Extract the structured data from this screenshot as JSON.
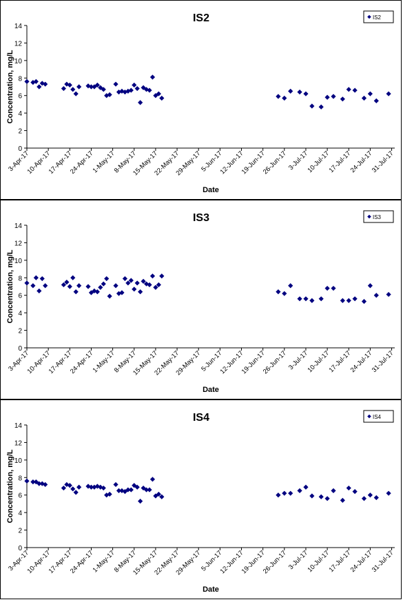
{
  "chart_data": [
    {
      "type": "scatter",
      "title": "IS2",
      "xlabel": "Date",
      "ylabel": "Concentration, mg/L",
      "ylim": [
        0,
        14
      ],
      "yticks": [
        0,
        2,
        4,
        6,
        8,
        10,
        12,
        14
      ],
      "xlim": [
        "2017-04-03",
        "2017-08-01"
      ],
      "xtick_labels": [
        "3-Apr-17",
        "10-Apr-17",
        "17-Apr-17",
        "24-Apr-17",
        "1-May-17",
        "8-May-17",
        "15-May-17",
        "22-May-17",
        "29-May-17",
        "5-Jun-17",
        "12-Jun-17",
        "19-Jun-17",
        "26-Jun-17",
        "3-Jul-17",
        "10-Jul-17",
        "17-Jul-17",
        "24-Jul-17",
        "31-Jul-17"
      ],
      "legend_position": "top-right",
      "grid": false,
      "marker_color": "#000080",
      "series": [
        {
          "name": "IS2",
          "points": [
            [
              "2017-04-03",
              7.6
            ],
            [
              "2017-04-05",
              7.5
            ],
            [
              "2017-04-06",
              7.6
            ],
            [
              "2017-04-07",
              7.0
            ],
            [
              "2017-04-08",
              7.4
            ],
            [
              "2017-04-09",
              7.3
            ],
            [
              "2017-04-15",
              6.8
            ],
            [
              "2017-04-16",
              7.3
            ],
            [
              "2017-04-17",
              7.2
            ],
            [
              "2017-04-18",
              6.7
            ],
            [
              "2017-04-19",
              6.2
            ],
            [
              "2017-04-20",
              7.0
            ],
            [
              "2017-04-23",
              7.1
            ],
            [
              "2017-04-24",
              7.0
            ],
            [
              "2017-04-25",
              7.0
            ],
            [
              "2017-04-26",
              7.2
            ],
            [
              "2017-04-27",
              6.9
            ],
            [
              "2017-04-28",
              6.7
            ],
            [
              "2017-04-29",
              6.0
            ],
            [
              "2017-04-30",
              6.1
            ],
            [
              "2017-05-02",
              7.3
            ],
            [
              "2017-05-03",
              6.4
            ],
            [
              "2017-05-04",
              6.5
            ],
            [
              "2017-05-05",
              6.4
            ],
            [
              "2017-05-06",
              6.5
            ],
            [
              "2017-05-07",
              6.6
            ],
            [
              "2017-05-08",
              7.2
            ],
            [
              "2017-05-09",
              6.8
            ],
            [
              "2017-05-10",
              5.2
            ],
            [
              "2017-05-11",
              6.9
            ],
            [
              "2017-05-12",
              6.7
            ],
            [
              "2017-05-13",
              6.6
            ],
            [
              "2017-05-14",
              8.1
            ],
            [
              "2017-05-15",
              6.0
            ],
            [
              "2017-05-16",
              6.2
            ],
            [
              "2017-05-17",
              5.7
            ],
            [
              "2017-06-24",
              5.9
            ],
            [
              "2017-06-26",
              5.7
            ],
            [
              "2017-06-28",
              6.5
            ],
            [
              "2017-07-01",
              6.4
            ],
            [
              "2017-07-03",
              6.2
            ],
            [
              "2017-07-05",
              4.8
            ],
            [
              "2017-07-08",
              4.7
            ],
            [
              "2017-07-10",
              5.8
            ],
            [
              "2017-07-12",
              5.9
            ],
            [
              "2017-07-15",
              5.6
            ],
            [
              "2017-07-17",
              6.7
            ],
            [
              "2017-07-19",
              6.6
            ],
            [
              "2017-07-22",
              5.7
            ],
            [
              "2017-07-24",
              6.2
            ],
            [
              "2017-07-26",
              5.4
            ],
            [
              "2017-07-30",
              6.2
            ]
          ]
        }
      ]
    },
    {
      "type": "scatter",
      "title": "IS3",
      "xlabel": "Date",
      "ylabel": "Concentration, mg/L",
      "ylim": [
        0,
        14
      ],
      "yticks": [
        0,
        2,
        4,
        6,
        8,
        10,
        12,
        14
      ],
      "xlim": [
        "2017-04-03",
        "2017-08-01"
      ],
      "xtick_labels": [
        "3-Apr-17",
        "10-Apr-17",
        "17-Apr-17",
        "24-Apr-17",
        "1-May-17",
        "8-May-17",
        "15-May-17",
        "22-May-17",
        "29-May-17",
        "5-Jun-17",
        "12-Jun-17",
        "19-Jun-17",
        "26-Jun-17",
        "3-Jul-17",
        "10-Jul-17",
        "17-Jul-17",
        "24-Jul-17",
        "31-Jul-17"
      ],
      "legend_position": "top-right",
      "grid": false,
      "marker_color": "#000080",
      "series": [
        {
          "name": "IS3",
          "points": [
            [
              "2017-04-03",
              7.4
            ],
            [
              "2017-04-05",
              7.1
            ],
            [
              "2017-04-06",
              8.0
            ],
            [
              "2017-04-07",
              6.5
            ],
            [
              "2017-04-08",
              7.9
            ],
            [
              "2017-04-09",
              7.1
            ],
            [
              "2017-04-15",
              7.2
            ],
            [
              "2017-04-16",
              7.5
            ],
            [
              "2017-04-17",
              7.0
            ],
            [
              "2017-04-18",
              8.0
            ],
            [
              "2017-04-19",
              6.4
            ],
            [
              "2017-04-20",
              7.1
            ],
            [
              "2017-04-23",
              7.0
            ],
            [
              "2017-04-24",
              6.3
            ],
            [
              "2017-04-25",
              6.5
            ],
            [
              "2017-04-26",
              6.4
            ],
            [
              "2017-04-27",
              6.9
            ],
            [
              "2017-04-28",
              7.3
            ],
            [
              "2017-04-29",
              7.9
            ],
            [
              "2017-04-30",
              5.9
            ],
            [
              "2017-05-02",
              7.1
            ],
            [
              "2017-05-03",
              6.2
            ],
            [
              "2017-05-04",
              6.3
            ],
            [
              "2017-05-05",
              7.9
            ],
            [
              "2017-05-06",
              7.4
            ],
            [
              "2017-05-07",
              7.7
            ],
            [
              "2017-05-08",
              6.7
            ],
            [
              "2017-05-09",
              7.4
            ],
            [
              "2017-05-10",
              6.4
            ],
            [
              "2017-05-11",
              7.6
            ],
            [
              "2017-05-12",
              7.3
            ],
            [
              "2017-05-13",
              7.2
            ],
            [
              "2017-05-14",
              8.2
            ],
            [
              "2017-05-15",
              6.9
            ],
            [
              "2017-05-16",
              7.2
            ],
            [
              "2017-05-17",
              8.2
            ],
            [
              "2017-06-24",
              6.4
            ],
            [
              "2017-06-26",
              6.2
            ],
            [
              "2017-06-28",
              7.1
            ],
            [
              "2017-07-01",
              5.6
            ],
            [
              "2017-07-03",
              5.6
            ],
            [
              "2017-07-05",
              5.4
            ],
            [
              "2017-07-08",
              5.6
            ],
            [
              "2017-07-10",
              6.8
            ],
            [
              "2017-07-12",
              6.8
            ],
            [
              "2017-07-15",
              5.4
            ],
            [
              "2017-07-17",
              5.4
            ],
            [
              "2017-07-19",
              5.6
            ],
            [
              "2017-07-22",
              5.3
            ],
            [
              "2017-07-24",
              7.1
            ],
            [
              "2017-07-26",
              6.0
            ],
            [
              "2017-07-30",
              6.1
            ]
          ]
        }
      ]
    },
    {
      "type": "scatter",
      "title": "IS4",
      "xlabel": "Date",
      "ylabel": "Concentration, mg/L",
      "ylim": [
        0,
        14
      ],
      "yticks": [
        0,
        2,
        4,
        6,
        8,
        10,
        12,
        14
      ],
      "xlim": [
        "2017-04-03",
        "2017-08-01"
      ],
      "xtick_labels": [
        "3-Apr-17",
        "10-Apr-17",
        "17-Apr-17",
        "24-Apr-17",
        "1-May-17",
        "8-May-17",
        "15-May-17",
        "22-May-17",
        "29-May-17",
        "5-Jun-17",
        "12-Jun-17",
        "19-Jun-17",
        "26-Jun-17",
        "3-Jul-17",
        "10-Jul-17",
        "17-Jul-17",
        "24-Jul-17",
        "31-Jul-17"
      ],
      "legend_position": "top-right",
      "grid": false,
      "marker_color": "#000080",
      "series": [
        {
          "name": "IS4",
          "points": [
            [
              "2017-04-03",
              7.6
            ],
            [
              "2017-04-05",
              7.5
            ],
            [
              "2017-04-06",
              7.5
            ],
            [
              "2017-04-07",
              7.3
            ],
            [
              "2017-04-08",
              7.3
            ],
            [
              "2017-04-09",
              7.2
            ],
            [
              "2017-04-15",
              6.8
            ],
            [
              "2017-04-16",
              7.2
            ],
            [
              "2017-04-17",
              7.1
            ],
            [
              "2017-04-18",
              6.7
            ],
            [
              "2017-04-19",
              6.3
            ],
            [
              "2017-04-20",
              6.9
            ],
            [
              "2017-04-23",
              7.0
            ],
            [
              "2017-04-24",
              6.9
            ],
            [
              "2017-04-25",
              6.9
            ],
            [
              "2017-04-26",
              7.0
            ],
            [
              "2017-04-27",
              6.9
            ],
            [
              "2017-04-28",
              6.8
            ],
            [
              "2017-04-29",
              6.0
            ],
            [
              "2017-04-30",
              6.1
            ],
            [
              "2017-05-02",
              7.2
            ],
            [
              "2017-05-03",
              6.5
            ],
            [
              "2017-05-04",
              6.5
            ],
            [
              "2017-05-05",
              6.4
            ],
            [
              "2017-05-06",
              6.6
            ],
            [
              "2017-05-07",
              6.6
            ],
            [
              "2017-05-08",
              7.1
            ],
            [
              "2017-05-09",
              6.9
            ],
            [
              "2017-05-10",
              5.3
            ],
            [
              "2017-05-11",
              6.8
            ],
            [
              "2017-05-12",
              6.6
            ],
            [
              "2017-05-13",
              6.6
            ],
            [
              "2017-05-14",
              7.8
            ],
            [
              "2017-05-15",
              5.9
            ],
            [
              "2017-05-16",
              6.1
            ],
            [
              "2017-05-17",
              5.8
            ],
            [
              "2017-06-24",
              6.0
            ],
            [
              "2017-06-26",
              6.2
            ],
            [
              "2017-06-28",
              6.2
            ],
            [
              "2017-07-01",
              6.5
            ],
            [
              "2017-07-03",
              6.9
            ],
            [
              "2017-07-05",
              5.9
            ],
            [
              "2017-07-08",
              5.8
            ],
            [
              "2017-07-10",
              5.6
            ],
            [
              "2017-07-12",
              6.5
            ],
            [
              "2017-07-15",
              5.4
            ],
            [
              "2017-07-17",
              6.8
            ],
            [
              "2017-07-19",
              6.4
            ],
            [
              "2017-07-22",
              5.6
            ],
            [
              "2017-07-24",
              6.0
            ],
            [
              "2017-07-26",
              5.7
            ],
            [
              "2017-07-30",
              6.2
            ]
          ]
        }
      ]
    }
  ]
}
